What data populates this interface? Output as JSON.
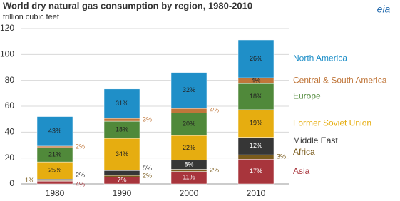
{
  "chart_data": {
    "type": "stacked-bar",
    "title": "World dry natural gas consumption by region, 1980-2010",
    "subtitle": "trillion cubic feet",
    "logo": "eia",
    "categories": [
      "1980",
      "1990",
      "2000",
      "2010"
    ],
    "ylim": [
      0,
      120
    ],
    "yticks": [
      0,
      20,
      40,
      60,
      80,
      100,
      120
    ],
    "grid": true,
    "series": [
      {
        "name": "Asia",
        "color": "#a8353c",
        "values": [
          2.1,
          5.1,
          9.6,
          19.1
        ],
        "share_labels": [
          "4%",
          "7%",
          "11%",
          "17%"
        ]
      },
      {
        "name": "Africa",
        "color": "#7a5b1c",
        "values": [
          0.5,
          1.5,
          1.7,
          3.4
        ],
        "share_labels": [
          "1%",
          "2%",
          "2%",
          "3%"
        ]
      },
      {
        "name": "Middle East",
        "color": "#363636",
        "values": [
          1.1,
          3.7,
          7.0,
          13.5
        ],
        "share_labels": [
          "2%",
          "5%",
          "8%",
          "12%"
        ]
      },
      {
        "name": "Former Soviet Union",
        "color": "#e6ad10",
        "values": [
          13.3,
          24.9,
          19.1,
          21.3
        ],
        "share_labels": [
          "25%",
          "34%",
          "22%",
          "19%"
        ]
      },
      {
        "name": "Europe",
        "color": "#50893a",
        "values": [
          11.1,
          13.2,
          17.4,
          20.2
        ],
        "share_labels": [
          "21%",
          "18%",
          "20%",
          "18%"
        ]
      },
      {
        "name": "Central & South America",
        "color": "#c0763a",
        "values": [
          1.1,
          2.2,
          3.5,
          4.5
        ],
        "share_labels": [
          "2%",
          "3%",
          "4%",
          "4%"
        ]
      },
      {
        "name": "North America",
        "color": "#1f8fc8",
        "values": [
          22.8,
          22.7,
          27.8,
          29.2
        ],
        "share_labels": [
          "43%",
          "31%",
          "32%",
          "26%"
        ]
      }
    ]
  }
}
